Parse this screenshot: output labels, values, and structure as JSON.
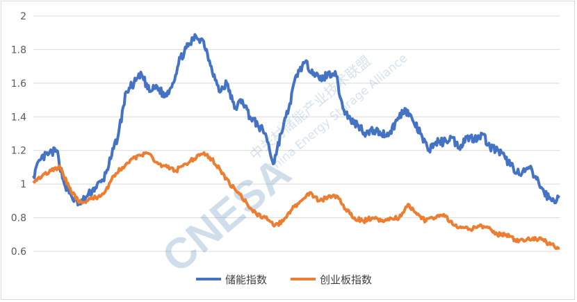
{
  "chart_data": {
    "type": "line",
    "title": "",
    "xlabel": "",
    "ylabel": "",
    "ylim": [
      0.6,
      2.0
    ],
    "yticks": [
      "0.6",
      "0.8",
      "1",
      "1.2",
      "1.4",
      "1.6",
      "1.8",
      "2"
    ],
    "grid": true,
    "legend_position": "bottom",
    "series": [
      {
        "name": "储能指数",
        "color": "#4472C4",
        "values": [
          1.05,
          1.15,
          1.18,
          1.2,
          1.0,
          0.92,
          0.88,
          0.93,
          0.98,
          1.02,
          1.15,
          1.3,
          1.55,
          1.6,
          1.65,
          1.55,
          1.58,
          1.52,
          1.6,
          1.75,
          1.82,
          1.88,
          1.85,
          1.7,
          1.55,
          1.6,
          1.45,
          1.5,
          1.4,
          1.35,
          1.3,
          1.12,
          1.3,
          1.45,
          1.65,
          1.72,
          1.68,
          1.62,
          1.65,
          1.67,
          1.45,
          1.38,
          1.35,
          1.3,
          1.32,
          1.3,
          1.3,
          1.38,
          1.45,
          1.38,
          1.3,
          1.2,
          1.25,
          1.25,
          1.28,
          1.22,
          1.28,
          1.27,
          1.3,
          1.22,
          1.2,
          1.15,
          1.1,
          1.05,
          1.1,
          1.03,
          0.95,
          0.9,
          0.92
        ]
      },
      {
        "name": "创业板指数",
        "color": "#ED7D31",
        "values": [
          1.02,
          1.05,
          1.08,
          1.1,
          0.98,
          0.9,
          0.9,
          0.92,
          0.95,
          1.05,
          1.1,
          1.15,
          1.17,
          1.18,
          1.12,
          1.1,
          1.08,
          1.12,
          1.15,
          1.18,
          1.15,
          1.08,
          1.0,
          0.95,
          0.88,
          0.82,
          0.8,
          0.75,
          0.78,
          0.85,
          0.9,
          0.95,
          0.9,
          0.92,
          0.93,
          0.85,
          0.8,
          0.78,
          0.8,
          0.78,
          0.8,
          0.8,
          0.88,
          0.82,
          0.78,
          0.8,
          0.82,
          0.76,
          0.74,
          0.73,
          0.75,
          0.74,
          0.7,
          0.7,
          0.67,
          0.66,
          0.68,
          0.67,
          0.64,
          0.62
        ]
      }
    ]
  },
  "watermark": {
    "logo": "CNESA",
    "cn": "中关村储能产业技术联盟",
    "en": "China Energy Storage Alliance"
  }
}
